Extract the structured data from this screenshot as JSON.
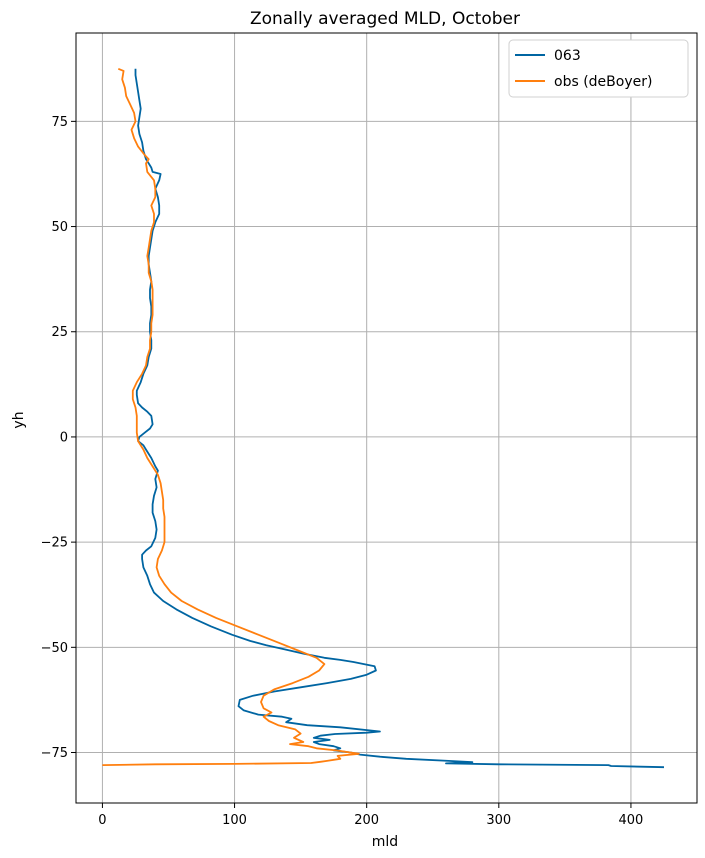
{
  "chart_data": {
    "type": "line",
    "title": "Zonally averaged MLD, October",
    "xlabel": "mld",
    "ylabel": "yh",
    "xlim": [
      -20,
      450
    ],
    "ylim": [
      -87,
      96
    ],
    "xticks": [
      0,
      100,
      200,
      300,
      400
    ],
    "yticks": [
      75,
      50,
      25,
      0,
      -25,
      -50,
      -75
    ],
    "xtick_labels": [
      "0",
      "100",
      "200",
      "300",
      "400"
    ],
    "ytick_labels": [
      "75",
      "50",
      "25",
      "0",
      "−25",
      "−50",
      "−75"
    ],
    "grid": true,
    "legend_position": "top-right",
    "colors": {
      "063": "#0065a2",
      "obs (deBoyer)": "#ff7f0e"
    },
    "series": [
      {
        "name": "063",
        "color": "#0065a2",
        "points": [
          [
            25,
            87.5
          ],
          [
            25,
            86
          ],
          [
            26,
            84
          ],
          [
            27,
            82
          ],
          [
            28,
            80
          ],
          [
            29,
            78
          ],
          [
            28,
            76
          ],
          [
            27,
            74
          ],
          [
            28,
            72
          ],
          [
            30,
            70
          ],
          [
            31,
            68
          ],
          [
            32,
            67
          ],
          [
            33,
            66
          ],
          [
            35,
            65
          ],
          [
            37,
            64
          ],
          [
            38,
            63
          ],
          [
            44,
            62.5
          ],
          [
            43,
            61
          ],
          [
            40,
            59
          ],
          [
            42,
            57
          ],
          [
            43,
            55
          ],
          [
            43,
            53
          ],
          [
            40,
            51
          ],
          [
            38,
            49
          ],
          [
            37,
            47
          ],
          [
            36,
            45
          ],
          [
            35,
            43
          ],
          [
            35,
            41
          ],
          [
            36,
            39
          ],
          [
            37,
            37
          ],
          [
            36,
            35
          ],
          [
            36,
            33
          ],
          [
            37,
            31
          ],
          [
            37,
            29
          ],
          [
            36,
            27
          ],
          [
            36,
            25
          ],
          [
            37,
            23
          ],
          [
            37,
            21
          ],
          [
            35,
            19
          ],
          [
            34,
            17
          ],
          [
            31,
            15
          ],
          [
            29,
            13
          ],
          [
            26,
            11
          ],
          [
            26,
            10
          ],
          [
            27,
            8
          ],
          [
            30,
            7
          ],
          [
            34,
            6
          ],
          [
            37,
            5
          ],
          [
            38,
            3
          ],
          [
            36,
            2
          ],
          [
            32,
            1
          ],
          [
            28,
            0
          ],
          [
            27,
            -1
          ],
          [
            31,
            -2
          ],
          [
            33,
            -3
          ],
          [
            37,
            -5
          ],
          [
            40,
            -7
          ],
          [
            42,
            -8
          ],
          [
            40,
            -10
          ],
          [
            41,
            -12
          ],
          [
            39,
            -14
          ],
          [
            38,
            -16
          ],
          [
            38,
            -18
          ],
          [
            40,
            -20
          ],
          [
            41,
            -22
          ],
          [
            40,
            -24
          ],
          [
            37,
            -26
          ],
          [
            33,
            -27
          ],
          [
            30,
            -28
          ],
          [
            30,
            -29
          ],
          [
            31,
            -31
          ],
          [
            34,
            -33
          ],
          [
            36,
            -35
          ],
          [
            39,
            -37
          ],
          [
            46,
            -39
          ],
          [
            56,
            -41
          ],
          [
            68,
            -43
          ],
          [
            82,
            -45
          ],
          [
            98,
            -47
          ],
          [
            112,
            -48.5
          ],
          [
            124,
            -49.5
          ],
          [
            138,
            -50.5
          ],
          [
            152,
            -51.5
          ],
          [
            168,
            -52.5
          ],
          [
            180,
            -53
          ],
          [
            190,
            -53.5
          ],
          [
            198,
            -54
          ],
          [
            206,
            -54.5
          ],
          [
            207,
            -55.5
          ],
          [
            200,
            -56.5
          ],
          [
            188,
            -57.5
          ],
          [
            170,
            -58.5
          ],
          [
            150,
            -59.5
          ],
          [
            130,
            -60.5
          ],
          [
            114,
            -61.5
          ],
          [
            104,
            -62.5
          ],
          [
            103,
            -64
          ],
          [
            107,
            -65
          ],
          [
            118,
            -66
          ],
          [
            136,
            -66.5
          ],
          [
            143,
            -67
          ],
          [
            139,
            -67.8
          ],
          [
            155,
            -68.5
          ],
          [
            180,
            -69
          ],
          [
            210,
            -70
          ],
          [
            200,
            -70.3
          ],
          [
            176,
            -70.6
          ],
          [
            165,
            -71
          ],
          [
            160,
            -71.5
          ],
          [
            172,
            -72
          ],
          [
            160,
            -72.5
          ],
          [
            164,
            -73
          ],
          [
            175,
            -73.5
          ],
          [
            180,
            -74
          ],
          [
            175,
            -74.5
          ],
          [
            188,
            -75
          ],
          [
            195,
            -75.5
          ],
          [
            210,
            -76
          ],
          [
            230,
            -76.5
          ],
          [
            262,
            -77
          ],
          [
            280,
            -77.3
          ],
          [
            260,
            -77.6
          ],
          [
            300,
            -77.8
          ],
          [
            383,
            -78
          ],
          [
            385,
            -78.2
          ],
          [
            425,
            -78.5
          ]
        ]
      },
      {
        "name": "obs (deBoyer)",
        "color": "#ff7f0e",
        "points": [
          [
            12,
            87.5
          ],
          [
            16,
            87
          ],
          [
            15,
            85
          ],
          [
            17,
            83
          ],
          [
            18,
            81
          ],
          [
            21,
            79
          ],
          [
            24,
            77
          ],
          [
            25,
            75
          ],
          [
            22,
            73
          ],
          [
            24,
            71
          ],
          [
            27,
            69
          ],
          [
            32,
            67
          ],
          [
            35,
            66
          ],
          [
            33,
            65
          ],
          [
            34,
            63
          ],
          [
            39,
            61
          ],
          [
            40,
            59
          ],
          [
            40,
            57
          ],
          [
            37,
            55
          ],
          [
            39,
            53
          ],
          [
            39,
            51
          ],
          [
            37,
            49
          ],
          [
            36,
            47
          ],
          [
            35,
            45
          ],
          [
            34,
            43
          ],
          [
            35,
            41
          ],
          [
            35,
            39
          ],
          [
            37,
            37
          ],
          [
            38,
            35
          ],
          [
            38,
            33
          ],
          [
            38,
            31
          ],
          [
            38,
            29
          ],
          [
            37,
            27
          ],
          [
            37,
            25
          ],
          [
            36,
            23
          ],
          [
            36,
            21
          ],
          [
            34,
            19
          ],
          [
            33,
            17
          ],
          [
            30,
            15
          ],
          [
            26,
            13
          ],
          [
            23,
            11
          ],
          [
            23,
            9
          ],
          [
            25,
            7
          ],
          [
            26,
            5
          ],
          [
            26,
            3
          ],
          [
            26,
            1
          ],
          [
            27,
            -1
          ],
          [
            31,
            -3
          ],
          [
            34,
            -5
          ],
          [
            38,
            -7
          ],
          [
            42,
            -9
          ],
          [
            44,
            -11
          ],
          [
            45,
            -13
          ],
          [
            46,
            -15
          ],
          [
            46,
            -17
          ],
          [
            47,
            -19
          ],
          [
            47,
            -21
          ],
          [
            47,
            -23
          ],
          [
            47,
            -25
          ],
          [
            45,
            -27
          ],
          [
            42,
            -29
          ],
          [
            41,
            -31
          ],
          [
            43,
            -33
          ],
          [
            47,
            -35
          ],
          [
            52,
            -37
          ],
          [
            60,
            -39
          ],
          [
            72,
            -41
          ],
          [
            86,
            -43
          ],
          [
            102,
            -45
          ],
          [
            118,
            -47
          ],
          [
            134,
            -49
          ],
          [
            150,
            -51
          ],
          [
            162,
            -52.5
          ],
          [
            168,
            -54
          ],
          [
            164,
            -55.5
          ],
          [
            156,
            -57
          ],
          [
            144,
            -58.5
          ],
          [
            130,
            -60
          ],
          [
            122,
            -61.5
          ],
          [
            120,
            -63
          ],
          [
            122,
            -64.5
          ],
          [
            128,
            -65.5
          ],
          [
            122,
            -66.5
          ],
          [
            126,
            -67.5
          ],
          [
            133,
            -68.5
          ],
          [
            146,
            -69.5
          ],
          [
            150,
            -70.5
          ],
          [
            145,
            -71.5
          ],
          [
            152,
            -72.5
          ],
          [
            142,
            -73
          ],
          [
            156,
            -73.5
          ],
          [
            162,
            -74
          ],
          [
            177,
            -74.5
          ],
          [
            194,
            -75.3
          ],
          [
            178,
            -75.8
          ],
          [
            180,
            -76.5
          ],
          [
            170,
            -77
          ],
          [
            165,
            -77.2
          ],
          [
            158,
            -77.5
          ],
          [
            100,
            -77.7
          ],
          [
            40,
            -77.8
          ],
          [
            0,
            -78
          ]
        ]
      }
    ]
  }
}
